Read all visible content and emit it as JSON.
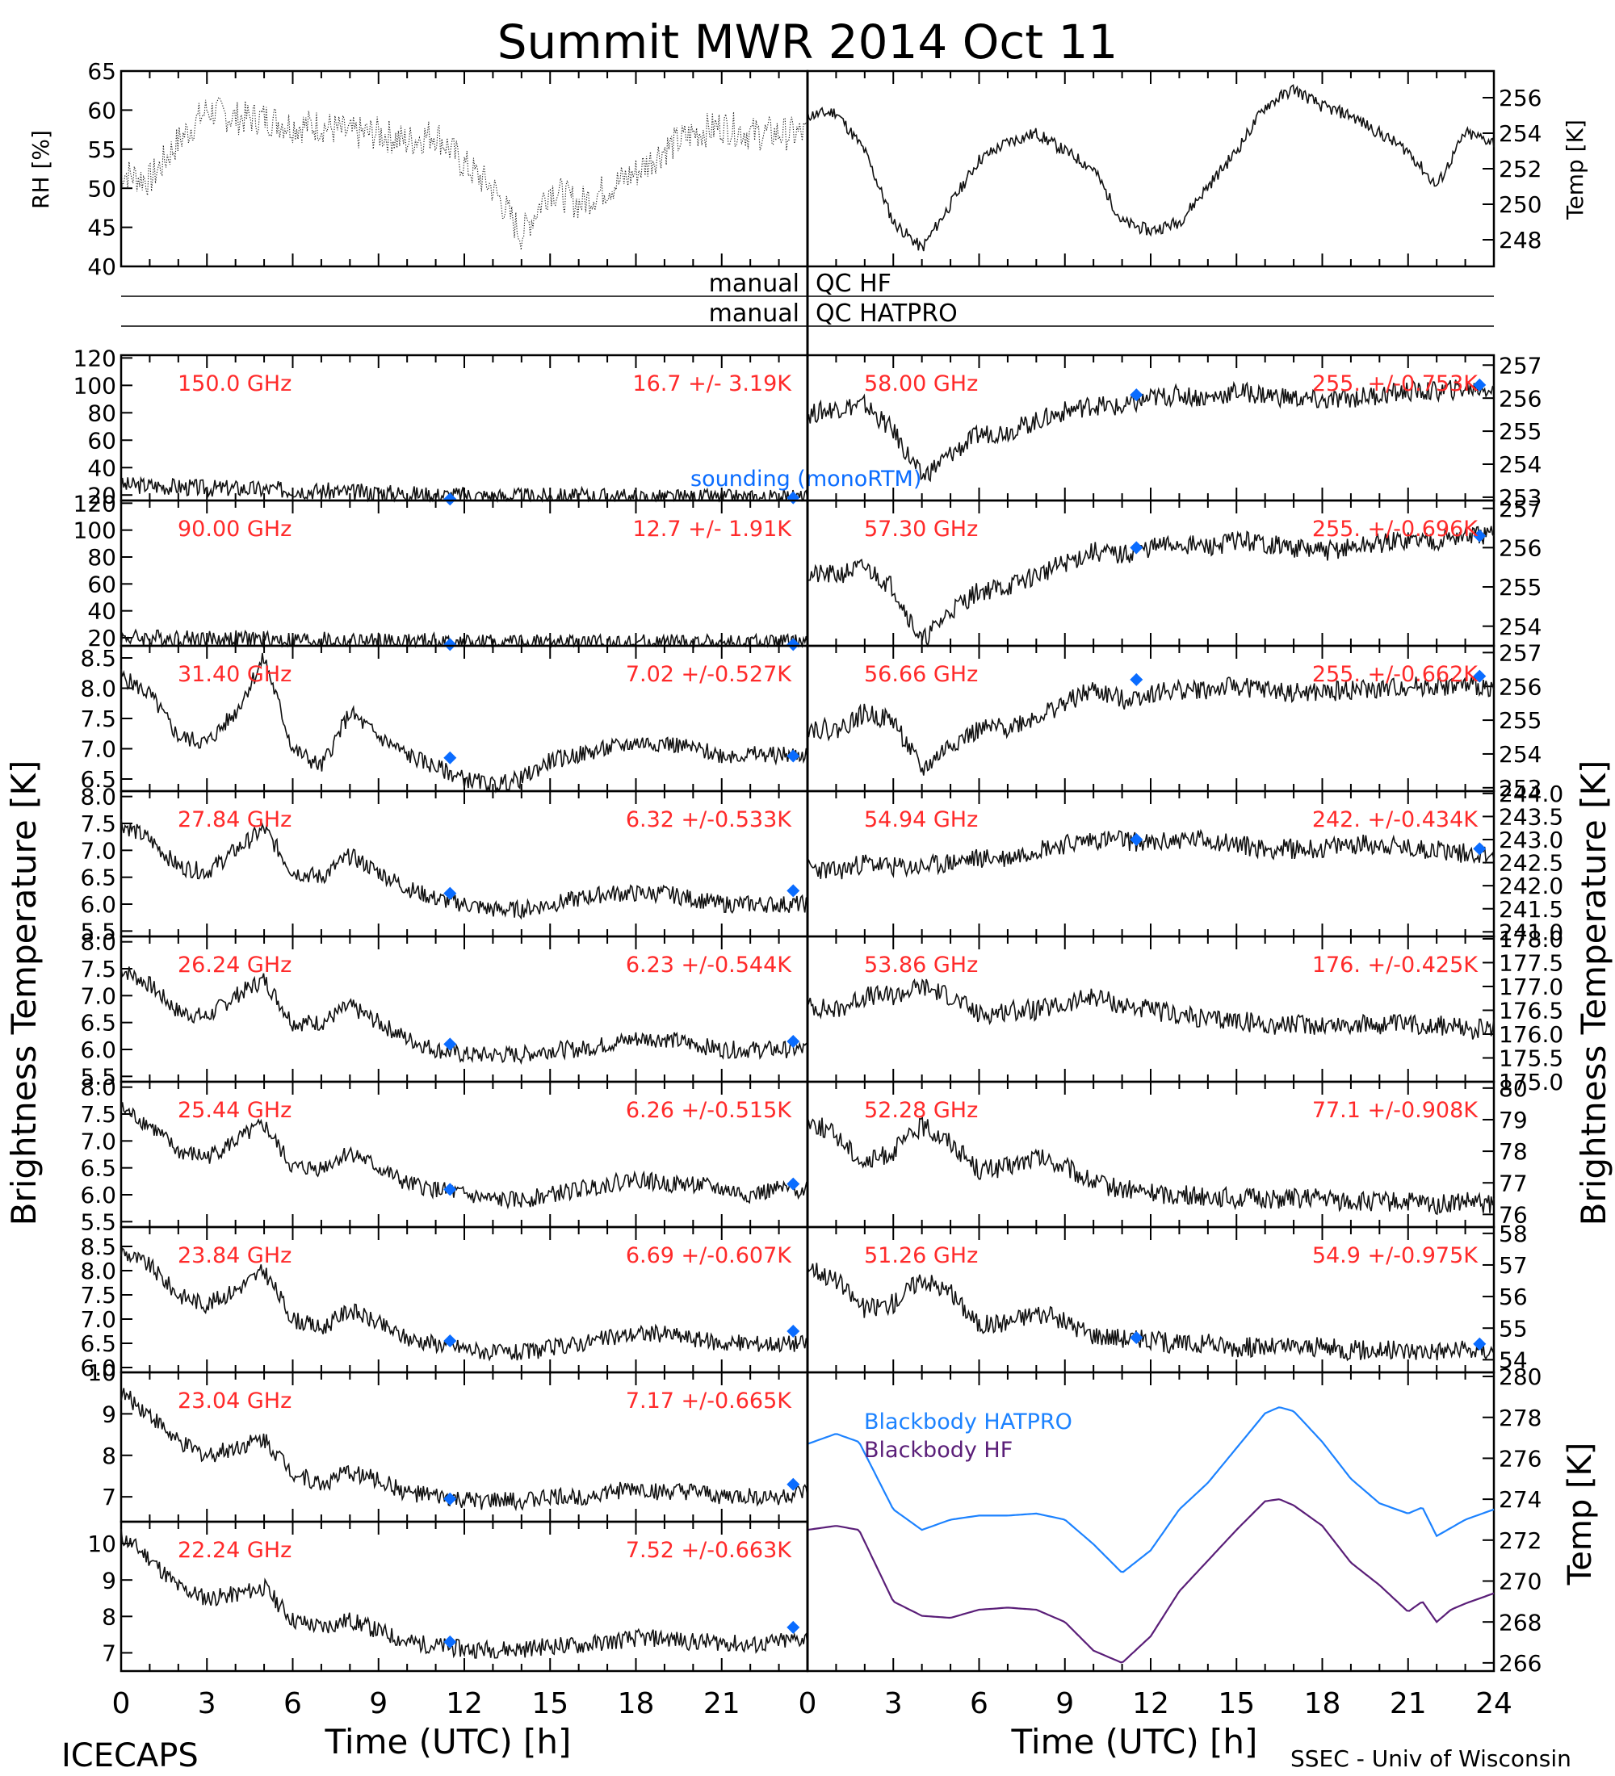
{
  "title": "Summit MWR 2014 Oct 11",
  "footer_left": "ICECAPS",
  "footer_right": "SSEC - Univ of Wisconsin",
  "colors": {
    "label_red": "#ff2a2a",
    "sounding_blue": "#0a6cff",
    "bb_hatpro": "#1c82ff",
    "bb_hf": "#5a1e78",
    "axis": "#000000"
  },
  "qc": {
    "left_top": "manual",
    "right_top": "QC HF",
    "left_bottom": "manual",
    "right_bottom": "QC HATPRO"
  },
  "chart_data": [
    {
      "type": "line",
      "id": "rh",
      "ylabel": "RH [%]",
      "ylim": [
        40,
        65
      ],
      "yticks": [
        "65",
        "60",
        "55",
        "50",
        "45",
        "40"
      ],
      "x": [
        0,
        1,
        2,
        3,
        4,
        5,
        6,
        7,
        8,
        9,
        10,
        11,
        12,
        13,
        14,
        15,
        16,
        17,
        18,
        19,
        20,
        21,
        22,
        23
      ],
      "values": [
        52,
        51,
        56,
        60,
        59,
        59,
        58,
        58,
        57,
        57,
        56,
        57,
        53,
        50,
        44,
        50,
        48,
        50,
        52,
        55,
        57,
        58,
        57,
        57
      ]
    },
    {
      "type": "line",
      "id": "temp",
      "ylabel": "Temp [K]",
      "ylim": [
        246.5,
        257.5
      ],
      "yticks": [
        "256",
        "254",
        "252",
        "250",
        "248"
      ],
      "x": [
        0,
        1,
        2,
        3,
        4,
        5,
        6,
        7,
        8,
        9,
        10,
        11,
        12,
        13,
        14,
        15,
        16,
        17,
        18,
        19,
        20,
        21,
        22,
        23,
        24
      ],
      "values": [
        255,
        255.2,
        253,
        249,
        247.5,
        250,
        252.5,
        253.5,
        254,
        253,
        252,
        249,
        248.5,
        249,
        251,
        253,
        255.5,
        256.5,
        255.5,
        255,
        254,
        253,
        251,
        254,
        253.5
      ]
    },
    {
      "type": "line",
      "id": "tb150",
      "label": "150.0 GHz",
      "stats": "16.7 +/-  3.19K",
      "ylim": [
        16,
        122
      ],
      "yticks": [
        "120",
        "100",
        "80",
        "60",
        "40",
        "20"
      ],
      "values": [
        27,
        27,
        26,
        25,
        25,
        24,
        24,
        23,
        22,
        22,
        21,
        20,
        20,
        19,
        19,
        19,
        19,
        19,
        18,
        18,
        18,
        18,
        18,
        18,
        18
      ],
      "sounding": [
        {
          "x": 11.5,
          "y": 17
        },
        {
          "x": 23.5,
          "y": 18
        }
      ],
      "annotation": "sounding (monoRTM)"
    },
    {
      "type": "line",
      "id": "tb90",
      "label": "90.00 GHz",
      "stats": "12.7 +/-  1.91K",
      "ylim": [
        14,
        122
      ],
      "yticks": [
        "120",
        "100",
        "80",
        "60",
        "40",
        "20"
      ],
      "values": [
        20,
        20,
        20,
        19,
        19,
        19,
        18,
        18,
        17,
        17,
        17,
        17,
        16,
        16,
        16,
        16,
        16,
        16,
        16,
        16,
        16,
        16,
        16,
        16,
        16
      ],
      "sounding": [
        {
          "x": 11.5,
          "y": 15
        },
        {
          "x": 23.5,
          "y": 15
        }
      ]
    },
    {
      "type": "line",
      "id": "tb3140",
      "label": "31.40 GHz",
      "stats": "7.02 +/-0.527K",
      "ylim": [
        6.3,
        8.7
      ],
      "yticks": [
        "8.5",
        "8.0",
        "7.5",
        "7.0",
        "6.5"
      ],
      "values": [
        8.2,
        7.9,
        7.2,
        7.1,
        7.6,
        8.5,
        7.0,
        6.7,
        7.6,
        7.2,
        6.9,
        6.7,
        6.5,
        6.4,
        6.5,
        6.8,
        6.9,
        7.0,
        7.1,
        7.1,
        7.0,
        6.9,
        6.9,
        6.9,
        6.9
      ],
      "sounding": [
        {
          "x": 11.5,
          "y": 6.85
        },
        {
          "x": 23.5,
          "y": 6.88
        }
      ]
    },
    {
      "type": "line",
      "id": "tb2784",
      "label": "27.84 GHz",
      "stats": "6.32 +/-0.533K",
      "ylim": [
        5.4,
        8.1
      ],
      "yticks": [
        "8.0",
        "7.5",
        "7.0",
        "6.5",
        "6.0",
        "5.5"
      ],
      "values": [
        7.5,
        7.2,
        6.7,
        6.6,
        7.0,
        7.4,
        6.6,
        6.5,
        6.9,
        6.6,
        6.3,
        6.1,
        6.0,
        5.9,
        5.9,
        6.0,
        6.1,
        6.2,
        6.2,
        6.2,
        6.1,
        6.0,
        6.0,
        6.0,
        6.0
      ],
      "sounding": [
        {
          "x": 11.5,
          "y": 6.2
        },
        {
          "x": 23.5,
          "y": 6.25
        }
      ]
    },
    {
      "type": "line",
      "id": "tb2624",
      "label": "26.24 GHz",
      "stats": "6.23 +/-0.544K",
      "ylim": [
        5.4,
        8.1
      ],
      "yticks": [
        "8.0",
        "7.5",
        "7.0",
        "6.5",
        "6.0",
        "5.5"
      ],
      "values": [
        7.5,
        7.2,
        6.7,
        6.6,
        7.0,
        7.3,
        6.5,
        6.5,
        6.8,
        6.5,
        6.2,
        6.0,
        5.9,
        5.9,
        5.9,
        6.0,
        6.0,
        6.1,
        6.2,
        6.2,
        6.1,
        6.0,
        6.0,
        6.0,
        6.0
      ],
      "sounding": [
        {
          "x": 11.5,
          "y": 6.1
        },
        {
          "x": 23.5,
          "y": 6.15
        }
      ]
    },
    {
      "type": "line",
      "id": "tb2544",
      "label": "25.44 GHz",
      "stats": "6.26 +/-0.515K",
      "ylim": [
        5.4,
        8.1
      ],
      "yticks": [
        "8.0",
        "7.5",
        "7.0",
        "6.5",
        "6.0",
        "5.5"
      ],
      "values": [
        7.6,
        7.3,
        6.8,
        6.7,
        7.0,
        7.3,
        6.5,
        6.5,
        6.8,
        6.5,
        6.2,
        6.1,
        6.0,
        5.9,
        5.9,
        6.0,
        6.1,
        6.2,
        6.3,
        6.2,
        6.2,
        6.1,
        6.0,
        6.1,
        6.1
      ],
      "sounding": [
        {
          "x": 11.5,
          "y": 6.1
        },
        {
          "x": 23.5,
          "y": 6.2
        }
      ]
    },
    {
      "type": "line",
      "id": "tb2384",
      "label": "23.84 GHz",
      "stats": "6.69 +/-0.607K",
      "ylim": [
        5.9,
        8.9
      ],
      "yticks": [
        "8.5",
        "8.0",
        "7.5",
        "7.0",
        "6.5",
        "6.0"
      ],
      "values": [
        8.4,
        8.1,
        7.5,
        7.3,
        7.6,
        8.0,
        7.0,
        6.8,
        7.2,
        6.9,
        6.6,
        6.5,
        6.4,
        6.3,
        6.3,
        6.4,
        6.5,
        6.6,
        6.7,
        6.7,
        6.6,
        6.5,
        6.5,
        6.5,
        6.5
      ],
      "sounding": [
        {
          "x": 11.5,
          "y": 6.55
        },
        {
          "x": 23.5,
          "y": 6.75
        }
      ]
    },
    {
      "type": "line",
      "id": "tb2304",
      "label": "23.04 GHz",
      "stats": "7.17 +/-0.665K",
      "ylim": [
        6.4,
        10.0
      ],
      "yticks": [
        "10",
        "9",
        "8",
        "7"
      ],
      "values": [
        9.5,
        9.0,
        8.3,
        8.0,
        8.2,
        8.4,
        7.6,
        7.3,
        7.6,
        7.4,
        7.1,
        7.0,
        6.9,
        6.9,
        6.9,
        7.0,
        7.0,
        7.1,
        7.2,
        7.1,
        7.1,
        7.0,
        7.0,
        7.0,
        7.1
      ],
      "sounding": [
        {
          "x": 11.5,
          "y": 6.95
        },
        {
          "x": 23.5,
          "y": 7.3
        }
      ]
    },
    {
      "type": "line",
      "id": "tb2224",
      "label": "22.24 GHz",
      "stats": "7.52 +/-0.663K",
      "ylim": [
        6.5,
        10.6
      ],
      "yticks": [
        "10",
        "9",
        "8",
        "7"
      ],
      "values": [
        10.2,
        9.6,
        8.8,
        8.5,
        8.6,
        8.8,
        7.9,
        7.7,
        7.9,
        7.6,
        7.3,
        7.2,
        7.1,
        7.1,
        7.1,
        7.2,
        7.2,
        7.3,
        7.4,
        7.4,
        7.3,
        7.3,
        7.2,
        7.3,
        7.4
      ],
      "sounding": [
        {
          "x": 11.5,
          "y": 7.3
        },
        {
          "x": 23.5,
          "y": 7.7
        }
      ]
    },
    {
      "type": "line",
      "id": "tb5800",
      "label": "58.00 GHz",
      "stats": "255. +/-0.753K",
      "ylim": [
        252.9,
        257.3
      ],
      "yticks": [
        "257",
        "256",
        "255",
        "254",
        "253"
      ],
      "values": [
        255.5,
        255.7,
        255.8,
        255.0,
        253.6,
        254.3,
        254.9,
        255.0,
        255.3,
        255.6,
        255.8,
        255.7,
        256.0,
        256.1,
        256.0,
        256.2,
        256.1,
        256.0,
        255.9,
        256.0,
        256.1,
        256.2,
        256.2,
        256.3,
        256.3
      ],
      "sounding": [
        {
          "x": 11.5,
          "y": 256.1
        },
        {
          "x": 23.5,
          "y": 256.4
        }
      ]
    },
    {
      "type": "line",
      "id": "tb5730",
      "label": "57.30 GHz",
      "stats": "255. +/-0.696K",
      "ylim": [
        253.5,
        257.2
      ],
      "yticks": [
        "257",
        "256",
        "255",
        "254"
      ],
      "values": [
        255.3,
        255.3,
        255.5,
        255.0,
        253.6,
        254.4,
        254.9,
        255.0,
        255.3,
        255.6,
        255.9,
        255.8,
        256.0,
        256.1,
        256.0,
        256.2,
        256.1,
        256.0,
        255.9,
        256.0,
        256.1,
        256.2,
        256.2,
        256.3,
        256.3
      ],
      "sounding": [
        {
          "x": 11.5,
          "y": 256.0
        },
        {
          "x": 23.5,
          "y": 256.3
        }
      ]
    },
    {
      "type": "line",
      "id": "tb5666",
      "label": "56.66 GHz",
      "stats": "255. +/-0.662K",
      "ylim": [
        252.9,
        257.2
      ],
      "yticks": [
        "257",
        "256",
        "255",
        "254",
        "253"
      ],
      "values": [
        254.8,
        254.7,
        255.2,
        255.0,
        253.5,
        254.3,
        254.7,
        254.8,
        255.1,
        255.5,
        255.9,
        255.6,
        255.8,
        255.9,
        255.9,
        256.0,
        255.9,
        255.8,
        255.8,
        255.9,
        255.9,
        256.0,
        256.0,
        256.0,
        256.0
      ],
      "sounding": [
        {
          "x": 11.5,
          "y": 256.2
        },
        {
          "x": 23.5,
          "y": 256.3
        }
      ]
    },
    {
      "type": "line",
      "id": "tb5494",
      "label": "54.94 GHz",
      "stats": "242. +/-0.434K",
      "ylim": [
        240.9,
        244.05
      ],
      "yticks": [
        "244.0",
        "243.5",
        "243.0",
        "242.5",
        "242.0",
        "241.5",
        "241.0"
      ],
      "values": [
        242.4,
        242.3,
        242.5,
        242.4,
        242.4,
        242.5,
        242.6,
        242.6,
        242.8,
        242.9,
        243.0,
        243.0,
        242.9,
        243.0,
        243.0,
        242.9,
        242.8,
        242.8,
        242.8,
        242.9,
        242.9,
        242.8,
        242.8,
        242.7,
        242.7
      ],
      "sounding": [
        {
          "x": 11.5,
          "y": 243.0
        },
        {
          "x": 23.5,
          "y": 242.8
        }
      ]
    },
    {
      "type": "line",
      "id": "tb5386",
      "label": "53.86 GHz",
      "stats": "176. +/-0.425K",
      "ylim": [
        175.0,
        178.05
      ],
      "yticks": [
        "178.0",
        "177.5",
        "177.0",
        "176.5",
        "176.0",
        "175.5",
        "175.0"
      ],
      "values": [
        176.6,
        176.5,
        176.8,
        176.8,
        177.0,
        176.8,
        176.4,
        176.5,
        176.5,
        176.6,
        176.8,
        176.6,
        176.5,
        176.4,
        176.3,
        176.3,
        176.2,
        176.2,
        176.2,
        176.2,
        176.2,
        176.2,
        176.2,
        176.1,
        176.1
      ]
    },
    {
      "type": "line",
      "id": "tb5228",
      "label": "52.28 GHz",
      "stats": "77.1 +/-0.908K",
      "ylim": [
        75.6,
        80.2
      ],
      "yticks": [
        "80",
        "79",
        "78",
        "77",
        "76"
      ],
      "values": [
        79.0,
        78.5,
        77.6,
        78.0,
        78.8,
        78.3,
        77.4,
        77.5,
        77.8,
        77.5,
        77.0,
        76.8,
        76.7,
        76.6,
        76.6,
        76.5,
        76.5,
        76.5,
        76.5,
        76.4,
        76.4,
        76.4,
        76.3,
        76.4,
        76.3
      ]
    },
    {
      "type": "line",
      "id": "tb5126",
      "label": "51.26 GHz",
      "stats": "54.9 +/-0.975K",
      "ylim": [
        53.6,
        58.2
      ],
      "yticks": [
        "58",
        "57",
        "56",
        "55",
        "54"
      ],
      "values": [
        57.0,
        56.5,
        55.6,
        55.8,
        56.6,
        56.1,
        55.1,
        55.2,
        55.5,
        55.2,
        54.8,
        54.7,
        54.6,
        54.5,
        54.5,
        54.4,
        54.4,
        54.4,
        54.4,
        54.3,
        54.3,
        54.3,
        54.3,
        54.3,
        54.3
      ],
      "sounding": [
        {
          "x": 11.5,
          "y": 54.7
        },
        {
          "x": 23.5,
          "y": 54.5
        }
      ]
    },
    {
      "type": "line",
      "id": "blackbody",
      "ylabel": "Temp [K]",
      "ylim": [
        265.6,
        280.2
      ],
      "yticks": [
        "280",
        "278",
        "276",
        "274",
        "272",
        "270",
        "268",
        "266"
      ],
      "x": [
        0,
        1,
        1.8,
        3,
        4,
        5,
        6,
        7,
        8,
        9,
        10,
        11,
        12,
        13,
        14,
        15,
        16,
        16.5,
        17,
        18,
        19,
        20,
        21,
        21.5,
        22,
        22.5,
        23,
        24
      ],
      "series": [
        {
          "name": "Blackbody HATPRO",
          "values": [
            276.7,
            277.2,
            276.8,
            273.5,
            272.5,
            273.0,
            273.2,
            273.2,
            273.3,
            273.0,
            271.8,
            270.4,
            271.5,
            273.5,
            274.8,
            276.5,
            278.2,
            278.5,
            278.3,
            276.8,
            275.0,
            273.8,
            273.3,
            273.6,
            272.2,
            272.6,
            273.0,
            273.5
          ]
        },
        {
          "name": "Blackbody HF",
          "values": [
            272.5,
            272.7,
            272.5,
            269.0,
            268.3,
            268.2,
            268.6,
            268.7,
            268.6,
            268.0,
            266.6,
            266.0,
            267.3,
            269.5,
            271.0,
            272.5,
            273.9,
            274.0,
            273.7,
            272.7,
            270.9,
            269.8,
            268.5,
            269.0,
            268.0,
            268.6,
            268.9,
            269.4
          ]
        }
      ]
    }
  ],
  "ylabel_left": "Brightness Temperature [K]",
  "ylabel_right": "Brightness Temperature [K]",
  "xaxis": {
    "label": "Time (UTC) [h]",
    "left_ticks": [
      "0",
      "3",
      "6",
      "9",
      "12",
      "15",
      "18",
      "21"
    ],
    "right_ticks": [
      "0",
      "3",
      "6",
      "9",
      "12",
      "15",
      "18",
      "21",
      "24"
    ],
    "xlim": [
      0,
      24
    ]
  }
}
